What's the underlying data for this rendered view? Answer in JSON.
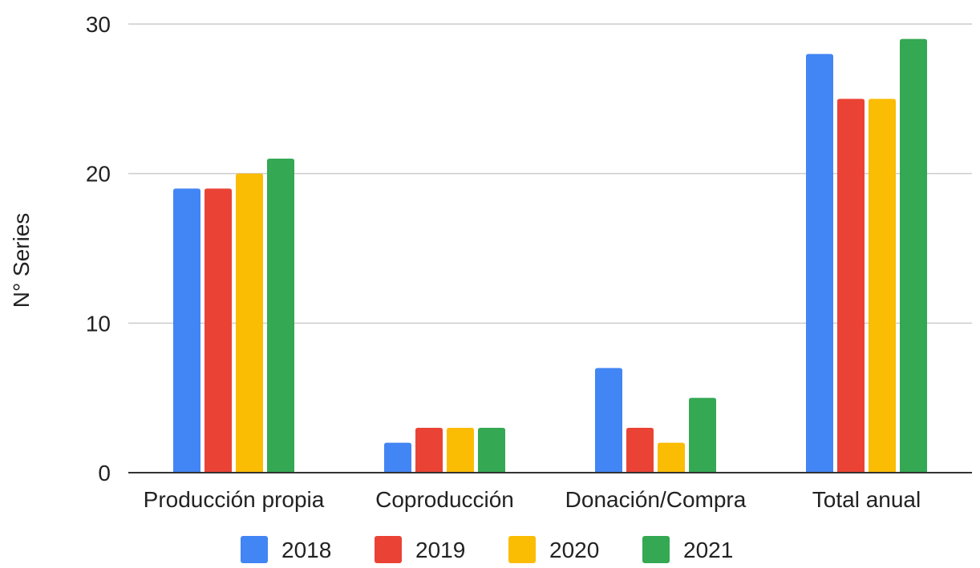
{
  "chart_data": {
    "type": "bar",
    "title": "",
    "xlabel": "",
    "ylabel": "N° Series",
    "ylim": [
      0,
      30
    ],
    "yticks": [
      0,
      10,
      20,
      30
    ],
    "grid": true,
    "legend_position": "bottom",
    "categories": [
      "Producción propia",
      "Coproducción",
      "Donación/Compra",
      "Total anual"
    ],
    "series": [
      {
        "name": "2018",
        "color": "#4285F4",
        "values": [
          19,
          2,
          7,
          28
        ]
      },
      {
        "name": "2019",
        "color": "#EA4335",
        "values": [
          19,
          3,
          3,
          25
        ]
      },
      {
        "name": "2020",
        "color": "#FBBC04",
        "values": [
          20,
          3,
          2,
          25
        ]
      },
      {
        "name": "2021",
        "color": "#34A853",
        "values": [
          21,
          3,
          5,
          29
        ]
      }
    ]
  }
}
